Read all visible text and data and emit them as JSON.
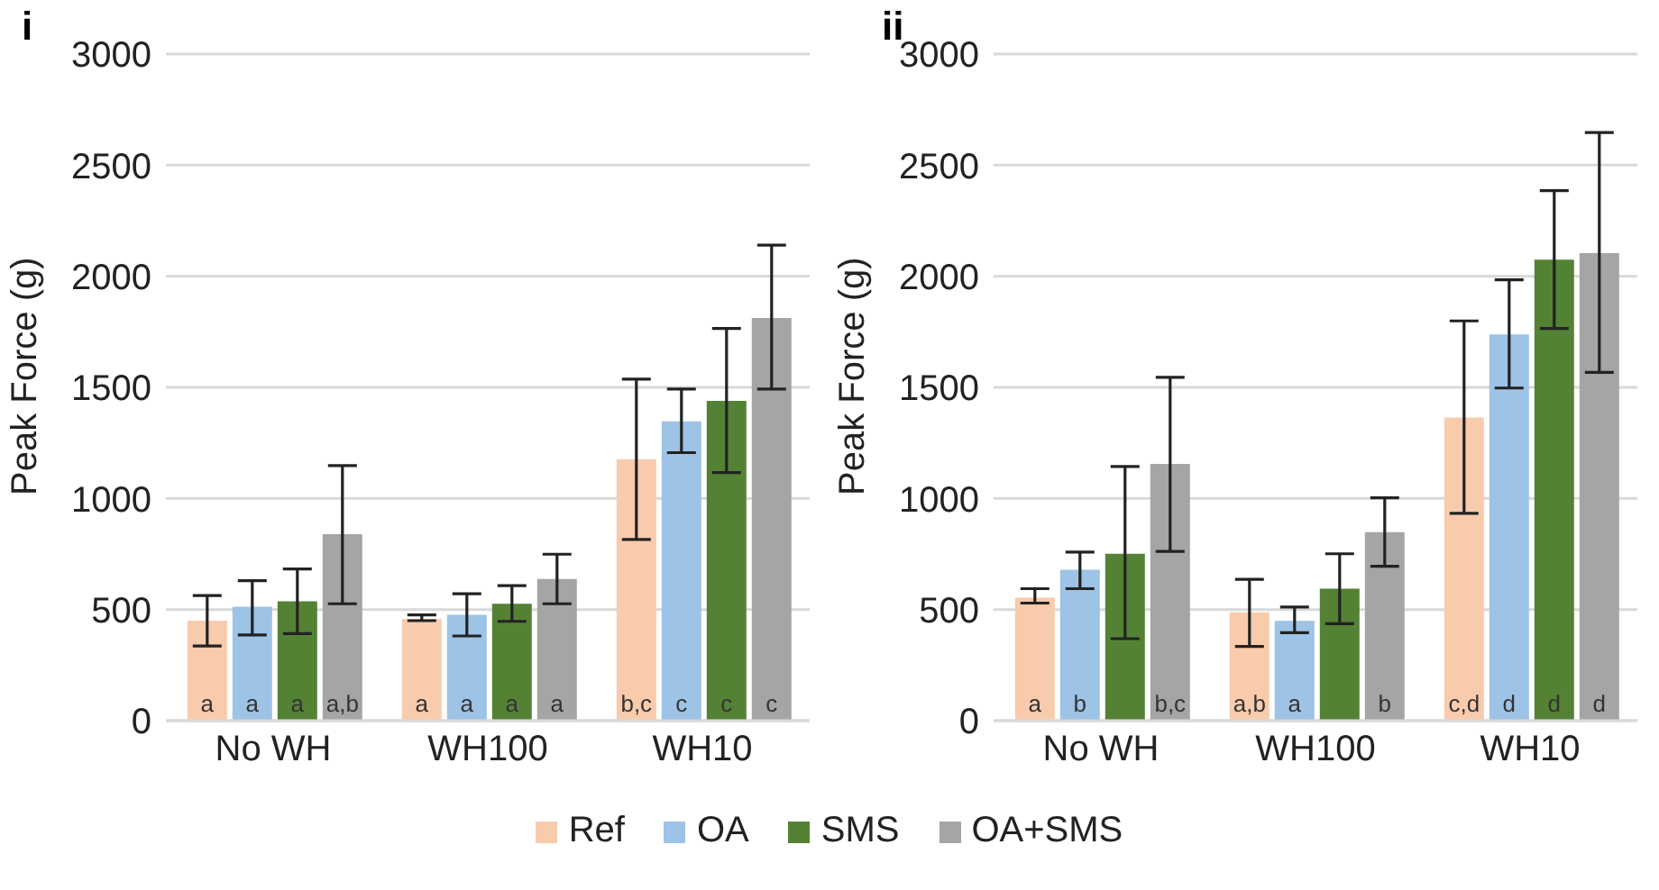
{
  "chart_data": [
    {
      "type": "bar",
      "title": "i",
      "ylabel": "Peak Force (g)",
      "categories": [
        "No WH",
        "WH100",
        "WH10"
      ],
      "ylim": [
        0,
        3000
      ],
      "yticks": [
        0,
        500,
        1000,
        1500,
        2000,
        2500,
        3000
      ],
      "grid": "y",
      "legend": "bottom",
      "series": [
        {
          "name": "Ref",
          "color": "#f8cbad",
          "values": [
            450,
            458,
            1177
          ],
          "errors": [
            [
              336,
              563
            ],
            [
              450,
              476
            ],
            [
              815,
              1537
            ]
          ],
          "value_labels": [
            "a",
            "a",
            "b,c"
          ]
        },
        {
          "name": "OA",
          "color": "#9dc3e6",
          "values": [
            513,
            476,
            1347
          ],
          "errors": [
            [
              386,
              630
            ],
            [
              381,
              571
            ],
            [
              1206,
              1492
            ]
          ],
          "value_labels": [
            "a",
            "a",
            "c"
          ]
        },
        {
          "name": "SMS",
          "color": "#548235",
          "values": [
            537,
            526,
            1439
          ],
          "errors": [
            [
              392,
              683
            ],
            [
              447,
              608
            ],
            [
              1116,
              1765
            ]
          ],
          "value_labels": [
            "a",
            "a",
            "c"
          ]
        },
        {
          "name": "OA+SMS",
          "color": "#a5a5a5",
          "values": [
            839,
            638,
            1812
          ],
          "errors": [
            [
              526,
              1148
            ],
            [
              526,
              749
            ],
            [
              1492,
              2140
            ]
          ],
          "value_labels": [
            "a,b",
            "a",
            "c"
          ]
        }
      ]
    },
    {
      "type": "bar",
      "title": "ii",
      "ylabel": "Peak Force (g)",
      "categories": [
        "No WH",
        "WH100",
        "WH10"
      ],
      "ylim": [
        0,
        3000
      ],
      "yticks": [
        0,
        500,
        1000,
        1500,
        2000,
        2500,
        3000
      ],
      "grid": "y",
      "series": [
        {
          "color": "#f8cbad",
          "values": [
            553,
            487,
            1364
          ],
          "errors": [
            [
              529,
              594
            ],
            [
              334,
              636
            ],
            [
              933,
              1799
            ]
          ],
          "value_labels": [
            "a",
            "a,b",
            "c,d"
          ]
        },
        {
          "color": "#9dc3e6",
          "values": [
            679,
            449,
            1738
          ],
          "errors": [
            [
              594,
              759
            ],
            [
              396,
              511
            ],
            [
              1497,
              1984
            ]
          ],
          "value_labels": [
            "b",
            "a",
            "d"
          ]
        },
        {
          "color": "#548235",
          "values": [
            751,
            594,
            2075
          ],
          "errors": [
            [
              369,
              1144
            ],
            [
              436,
              751
            ],
            [
              1765,
              2385
            ]
          ],
          "value_labels": [
            null,
            null,
            "d"
          ]
        },
        {
          "color": "#a5a5a5",
          "values": [
            1155,
            848,
            2104
          ],
          "errors": [
            [
              762,
              1545
            ],
            [
              695,
              1003
            ],
            [
              1567,
              2647
            ]
          ],
          "value_labels": [
            "b,c",
            "b",
            "d"
          ]
        }
      ]
    }
  ]
}
